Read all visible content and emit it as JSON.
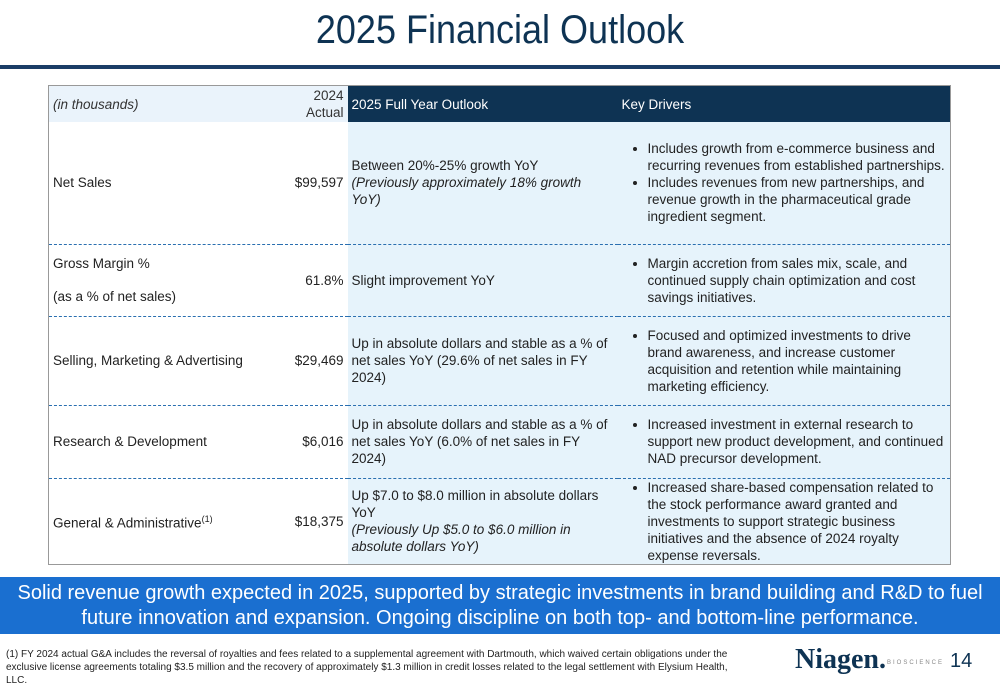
{
  "title": "2025 Financial Outlook",
  "table": {
    "headers": {
      "label": "(in thousands)",
      "actual": "2024 Actual",
      "outlook": "2025 Full Year Outlook",
      "drivers": "Key Drivers"
    },
    "rows": [
      {
        "label": "Net Sales",
        "actual": "$99,597",
        "outlook_line1": "Between 20%-25% growth YoY",
        "outlook_line2": "(Previously approximately 18% growth YoY)",
        "drivers": [
          "Includes growth from e-commerce business and recurring revenues from established partnerships.",
          "Includes revenues from new partnerships, and revenue growth in the pharmaceutical grade ingredient segment."
        ]
      },
      {
        "label_line1": "Gross Margin %",
        "label_line2": "(as a % of net sales)",
        "actual": "61.8%",
        "outlook": "Slight improvement YoY",
        "drivers": [
          "Margin accretion from sales mix, scale, and continued supply chain optimization and cost savings initiatives."
        ]
      },
      {
        "label": "Selling, Marketing & Advertising",
        "actual": "$29,469",
        "outlook": "Up in absolute dollars and stable as a % of net sales YoY (29.6% of net sales in FY 2024)",
        "drivers": [
          "Focused and optimized investments to drive brand awareness, and increase customer acquisition and retention while maintaining marketing efficiency."
        ]
      },
      {
        "label": "Research & Development",
        "actual": "$6,016",
        "outlook": "Up in absolute dollars and stable as a % of net sales YoY (6.0% of net sales in FY 2024)",
        "drivers": [
          "Increased investment in external research to support new product development, and continued NAD precursor development."
        ]
      },
      {
        "label": "General & Administrative",
        "label_sup": "(1)",
        "actual": "$18,375",
        "outlook_line1": "Up $7.0 to $8.0 million in absolute dollars YoY",
        "outlook_line2": "(Previously Up $5.0 to $6.0 million in absolute dollars YoY)",
        "drivers": [
          "Increased share-based compensation related to the stock performance award granted and investments to support strategic business initiatives and the absence of 2024 royalty expense reversals."
        ]
      }
    ]
  },
  "banner": "Solid revenue growth expected in 2025, supported by strategic investments in brand building and R&D to fuel future innovation and expansion. Ongoing discipline on both top- and bottom-line performance.",
  "footnote": "(1) FY 2024 actual G&A includes the reversal of royalties and fees related to a supplemental agreement with Dartmouth, which waived certain obligations under the exclusive license agreements totaling $3.5 million and the recovery of approximately $1.3 million in credit losses related to the legal settlement with Elysium Health, LLC.",
  "logo": {
    "name": "Niagen.",
    "sub": "BIOSCIENCE"
  },
  "page_number": "14"
}
